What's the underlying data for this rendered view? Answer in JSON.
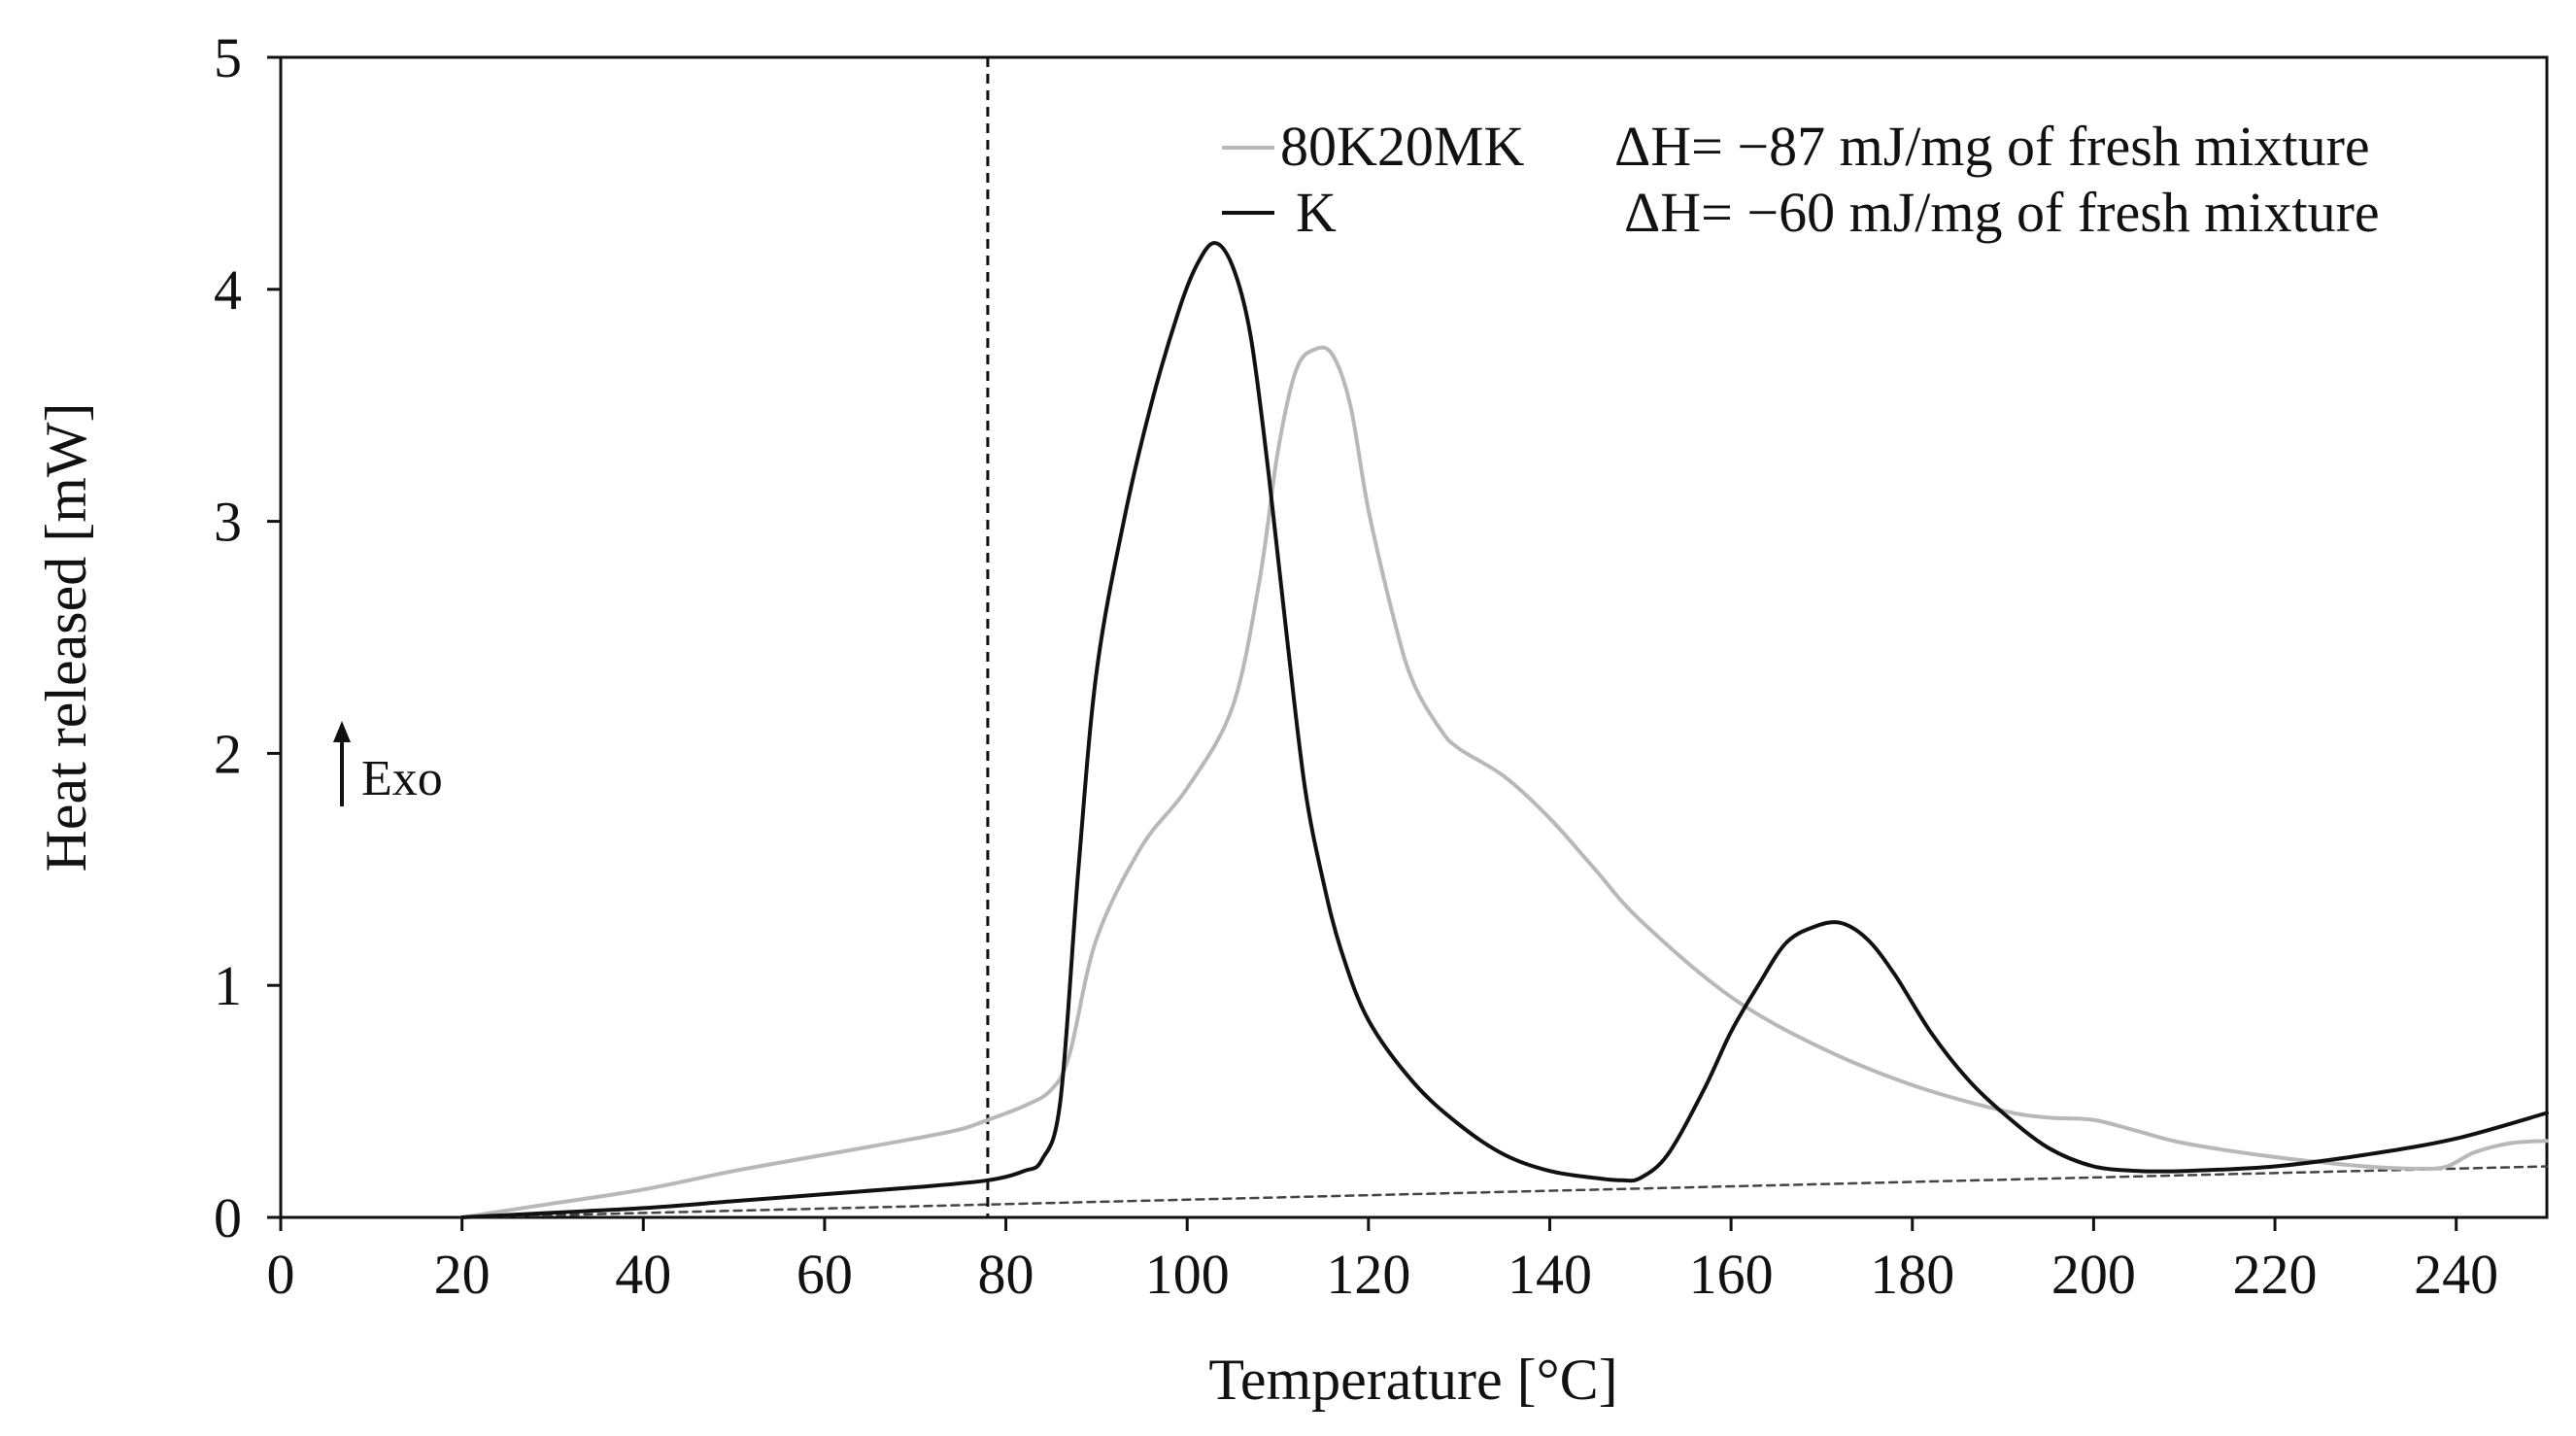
{
  "chart_data": {
    "type": "line",
    "title": "",
    "xlabel": "Temperature [°C]",
    "ylabel": "Heat released [mW]",
    "xlim": [
      0,
      250
    ],
    "ylim": [
      0,
      5
    ],
    "xticks": [
      0,
      20,
      40,
      60,
      80,
      100,
      120,
      140,
      160,
      180,
      200,
      220,
      240
    ],
    "yticks": [
      0,
      1,
      2,
      3,
      4,
      5
    ],
    "grid": false,
    "vline": {
      "x": 78,
      "style": "dashed"
    },
    "annotation": {
      "text": "Exo",
      "arrow": "up"
    },
    "series": [
      {
        "name": "80K20MK",
        "delta_h": "ΔH= −87 mJ/mg of fresh mixture",
        "color": "#b8b8b8",
        "x": [
          20,
          25,
          30,
          40,
          50,
          60,
          70,
          75,
          78,
          82,
          85,
          87,
          90,
          95,
          100,
          105,
          108,
          110,
          112,
          114,
          116,
          118,
          120,
          123,
          125,
          128,
          130,
          135,
          140,
          145,
          150,
          160,
          170,
          180,
          190,
          195,
          200,
          205,
          210,
          220,
          230,
          236,
          239,
          242,
          246,
          250
        ],
        "values": [
          0.0,
          0.03,
          0.06,
          0.12,
          0.2,
          0.27,
          0.34,
          0.38,
          0.42,
          0.48,
          0.55,
          0.7,
          1.2,
          1.6,
          1.85,
          2.2,
          2.75,
          3.3,
          3.65,
          3.74,
          3.72,
          3.5,
          3.05,
          2.55,
          2.3,
          2.1,
          2.02,
          1.9,
          1.72,
          1.5,
          1.28,
          0.95,
          0.73,
          0.57,
          0.46,
          0.43,
          0.42,
          0.37,
          0.32,
          0.26,
          0.22,
          0.21,
          0.22,
          0.28,
          0.32,
          0.33
        ]
      },
      {
        "name": "K",
        "delta_h": "ΔH= −60 mJ/mg of fresh mixture",
        "color": "#111111",
        "x": [
          20,
          30,
          40,
          50,
          60,
          70,
          78,
          82,
          84,
          86,
          88,
          90,
          93,
          96,
          99,
          101,
          103,
          105,
          107,
          109,
          111,
          113,
          115,
          117,
          120,
          125,
          130,
          135,
          140,
          145,
          148,
          150,
          153,
          157,
          160,
          163,
          166,
          169,
          172,
          175,
          178,
          182,
          186,
          190,
          195,
          200,
          205,
          210,
          220,
          230,
          240,
          250
        ],
        "values": [
          0.0,
          0.02,
          0.04,
          0.07,
          0.1,
          0.13,
          0.16,
          0.2,
          0.25,
          0.5,
          1.5,
          2.35,
          3.0,
          3.5,
          3.9,
          4.1,
          4.2,
          4.1,
          3.8,
          3.2,
          2.5,
          1.85,
          1.45,
          1.15,
          0.85,
          0.58,
          0.4,
          0.27,
          0.2,
          0.17,
          0.16,
          0.17,
          0.27,
          0.55,
          0.8,
          1.0,
          1.18,
          1.25,
          1.27,
          1.2,
          1.05,
          0.8,
          0.6,
          0.45,
          0.3,
          0.22,
          0.2,
          0.2,
          0.22,
          0.27,
          0.34,
          0.45
        ]
      },
      {
        "name": "baseline",
        "color": "#444444",
        "style": "dashed",
        "x": [
          20,
          250
        ],
        "values": [
          0.0,
          0.22
        ]
      }
    ]
  }
}
